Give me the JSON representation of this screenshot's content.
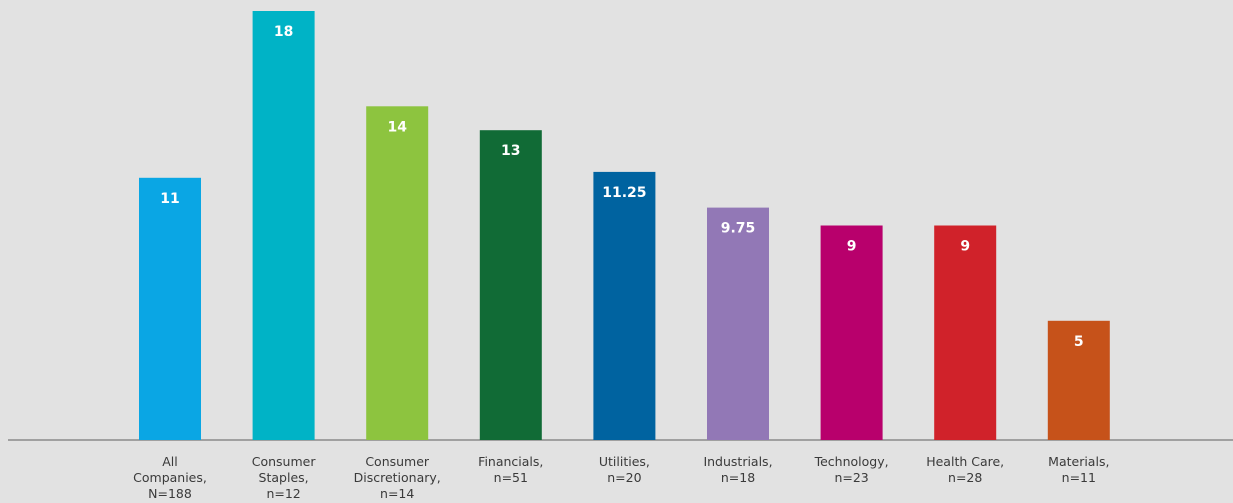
{
  "chart_data": {
    "type": "bar",
    "title": "",
    "xlabel": "",
    "ylabel": "",
    "ylim": [
      0,
      18
    ],
    "grid": false,
    "legend": false,
    "categories": [
      [
        "All",
        "Companies,",
        "N=188"
      ],
      [
        "Consumer",
        "Staples,",
        "n=12"
      ],
      [
        "Consumer",
        "Discretionary,",
        "n=14"
      ],
      [
        "Financials,",
        "n=51"
      ],
      [
        "Utilities,",
        "n=20"
      ],
      [
        "Industrials,",
        "n=18"
      ],
      [
        "Technology,",
        "n=23"
      ],
      [
        "Health Care,",
        "n=28"
      ],
      [
        "Materials,",
        "n=11"
      ]
    ],
    "values": [
      11,
      18,
      14,
      13,
      11.25,
      9.75,
      9,
      9,
      5
    ],
    "value_labels": [
      "11",
      "18",
      "14",
      "13",
      "11.25",
      "9.75",
      "9",
      "9",
      "5"
    ],
    "colors": [
      "#0aa6e4",
      "#00b3c6",
      "#8dc43f",
      "#116b36",
      "#0063a0",
      "#9278b6",
      "#b8006c",
      "#d0222a",
      "#c6521a"
    ]
  }
}
